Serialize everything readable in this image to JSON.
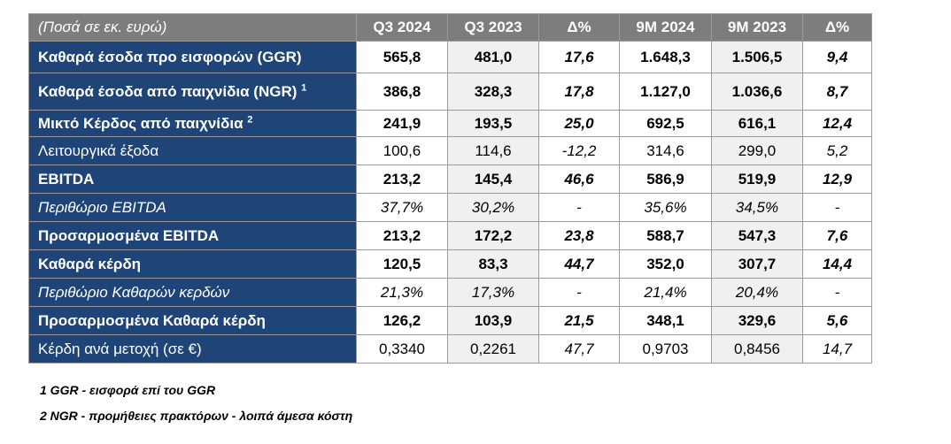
{
  "table": {
    "header": {
      "label": "(Ποσά σε εκ. ευρώ)",
      "columns": [
        "Q3 2024",
        "Q3 2023",
        "Δ%",
        "9M 2024",
        "9M 2023",
        "Δ%"
      ]
    },
    "rows": [
      {
        "label": "Καθαρά έσοδα προ εισφορών (GGR)",
        "sup": "",
        "values": [
          "565,8",
          "481,0",
          "17,6",
          "1.648,3",
          "1.506,5",
          "9,4"
        ]
      },
      {
        "label": "Καθαρά έσοδα από παιχνίδια (NGR)",
        "sup": "1",
        "values": [
          "386,8",
          "328,3",
          "17,8",
          "1.127,0",
          "1.036,6",
          "8,7"
        ]
      },
      {
        "label": "Μικτό Κέρδος από παιχνίδια",
        "sup": "2",
        "values": [
          "241,9",
          "193,5",
          "25,0",
          "692,5",
          "616,1",
          "12,4"
        ]
      },
      {
        "label": "Λειτουργικά έξοδα",
        "sup": "",
        "values": [
          "100,6",
          "114,6",
          "-12,2",
          "314,6",
          "299,0",
          "5,2"
        ]
      },
      {
        "label": "EBITDA",
        "sup": "",
        "values": [
          "213,2",
          "145,4",
          "46,6",
          "586,9",
          "519,9",
          "12,9"
        ]
      },
      {
        "label": "Περιθώριο EBITDA",
        "sup": "",
        "values": [
          "37,7%",
          "30,2%",
          "-",
          "35,6%",
          "34,5%",
          "-"
        ]
      },
      {
        "label": "Προσαρμοσμένα EBITDA",
        "sup": "",
        "values": [
          "213,2",
          "172,2",
          "23,8",
          "588,7",
          "547,3",
          "7,6"
        ]
      },
      {
        "label": "Καθαρά κέρδη",
        "sup": "",
        "values": [
          "120,5",
          "83,3",
          "44,7",
          "352,0",
          "307,7",
          "14,4"
        ]
      },
      {
        "label": "Περιθώριο Καθαρών κερδών",
        "sup": "",
        "values": [
          "21,3%",
          "17,3%",
          "-",
          "21,4%",
          "20,4%",
          "-"
        ]
      },
      {
        "label": "Προσαρμοσμένα Καθαρά κέρδη",
        "sup": "",
        "values": [
          "126,2",
          "103,9",
          "21,5",
          "348,1",
          "329,6",
          "5,6"
        ]
      },
      {
        "label": "Κέρδη ανά μετοχή (σε €)",
        "sup": "",
        "values": [
          "0,3340",
          "0,2261",
          "47,7",
          "0,9703",
          "0,8456",
          "14,7"
        ]
      }
    ]
  },
  "notes": [
    "1 GGR - εισφορά επί του GGR",
    "2 NGR - προμήθειες πρακτόρων - λοιπά άμεσα κόστη"
  ],
  "colors": {
    "header_bg": "#7d7d7d",
    "label_bg": "#1f4477",
    "alt_cell_bg": "#f0f0f0"
  }
}
